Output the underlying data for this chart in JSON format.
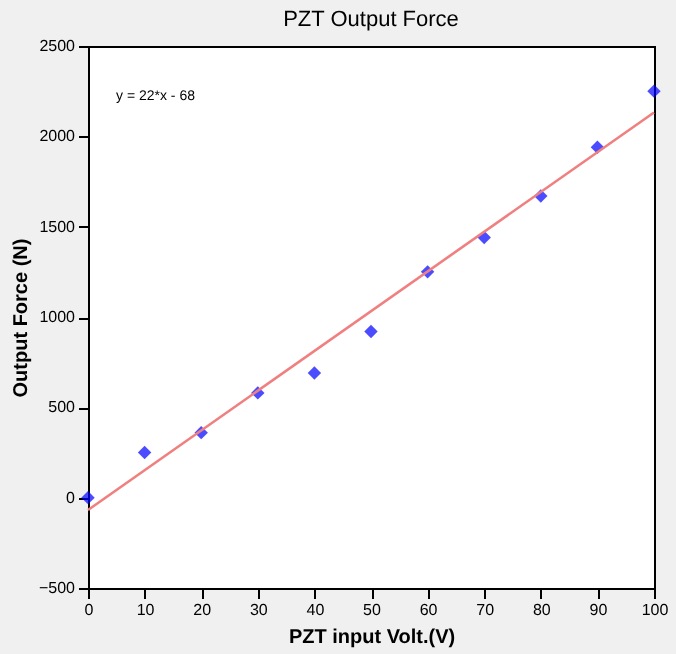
{
  "chart_data": {
    "type": "scatter",
    "title": "PZT Output Force",
    "xlabel": "PZT input Volt.(V)",
    "ylabel": "Output Force (N)",
    "x": [
      0,
      10,
      20,
      30,
      40,
      50,
      60,
      70,
      80,
      90,
      100
    ],
    "series": [
      {
        "color": "#0000ff",
        "marker": "diamond",
        "values": [
          0,
          250,
          360,
          580,
          690,
          920,
          1250,
          1440,
          1670,
          1940,
          2250
        ]
      },
      {
        "type": "line",
        "color": "#f08080",
        "marker": "none",
        "line_style": "solid",
        "x": [
          0,
          100
        ],
        "values": [
          -68,
          2132
        ]
      }
    ],
    "annotations": [
      "y = 22*x - 68"
    ],
    "xlim": [
      0,
      100
    ],
    "xticks": [
      0,
      10,
      20,
      30,
      40,
      50,
      60,
      70,
      80,
      90,
      100
    ],
    "ylim": [
      -500,
      2500
    ],
    "yticks": [
      -500,
      0,
      500,
      1000,
      1500,
      2000,
      2500
    ],
    "grid": false
  }
}
